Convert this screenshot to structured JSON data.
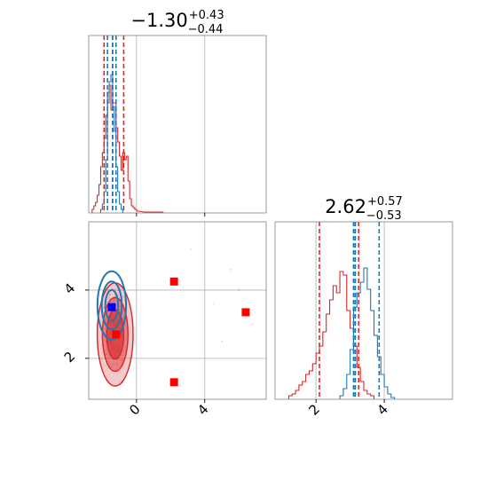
{
  "titles": [
    {
      "value": "−1.30",
      "upper": "+0.43",
      "lower": "−0.44"
    },
    {
      "value": "2.62",
      "upper": "+0.57",
      "lower": "−0.53"
    }
  ],
  "colors": {
    "red": "#d62728",
    "blue": "#1f77b4",
    "marker_red": "#ff0000",
    "marker_blue": "#0000ff"
  },
  "chart_data": {
    "type": "corner",
    "parameters": [
      "x",
      "y"
    ],
    "x_range": [
      -2.8,
      7.6
    ],
    "y_range": [
      0.8,
      6.0
    ],
    "x_ticks": [
      {
        "value": 0,
        "label": "0"
      },
      {
        "value": 4,
        "label": "4"
      }
    ],
    "y_ticks": [
      {
        "value": 2,
        "label": "2"
      },
      {
        "value": 4,
        "label": "4"
      }
    ],
    "grid": true,
    "series": [
      {
        "color": "red",
        "x_quantiles": [
          -1.9,
          -1.4,
          -0.75
        ],
        "y_quantiles": [
          2.1,
          3.15,
          3.25
        ],
        "x_center": -1.3,
        "y_center": 2.6,
        "x_hist": [
          {
            "x": -2.55,
            "h": 0.02
          },
          {
            "x": -2.45,
            "h": 0.04
          },
          {
            "x": -2.35,
            "h": 0.06
          },
          {
            "x": -2.25,
            "h": 0.1
          },
          {
            "x": -2.15,
            "h": 0.16
          },
          {
            "x": -2.05,
            "h": 0.26
          },
          {
            "x": -1.95,
            "h": 0.34
          },
          {
            "x": -1.85,
            "h": 0.42
          },
          {
            "x": -1.75,
            "h": 0.55
          },
          {
            "x": -1.65,
            "h": 0.68
          },
          {
            "x": -1.55,
            "h": 0.72
          },
          {
            "x": -1.45,
            "h": 0.58
          },
          {
            "x": -1.35,
            "h": 0.62
          },
          {
            "x": -1.25,
            "h": 0.62
          },
          {
            "x": -1.15,
            "h": 0.48
          },
          {
            "x": -1.05,
            "h": 0.4
          },
          {
            "x": -0.95,
            "h": 0.32
          },
          {
            "x": -0.85,
            "h": 0.24
          },
          {
            "x": -0.75,
            "h": 0.34
          },
          {
            "x": -0.65,
            "h": 0.3
          },
          {
            "x": -0.55,
            "h": 0.32
          },
          {
            "x": -0.45,
            "h": 0.18
          },
          {
            "x": -0.35,
            "h": 0.08
          },
          {
            "x": -0.25,
            "h": 0.04
          },
          {
            "x": -0.15,
            "h": 0.03
          },
          {
            "x": -0.05,
            "h": 0.02
          },
          {
            "x": 0.1,
            "h": 0.01
          },
          {
            "x": 0.5,
            "h": 0.005
          },
          {
            "x": 1.5,
            "h": 0.005
          }
        ],
        "y_hist": [
          {
            "x": 1.25,
            "h": 0.02
          },
          {
            "x": 1.35,
            "h": 0.03
          },
          {
            "x": 1.45,
            "h": 0.05
          },
          {
            "x": 1.55,
            "h": 0.08
          },
          {
            "x": 1.65,
            "h": 0.1
          },
          {
            "x": 1.75,
            "h": 0.14
          },
          {
            "x": 1.85,
            "h": 0.16
          },
          {
            "x": 1.95,
            "h": 0.2
          },
          {
            "x": 2.05,
            "h": 0.26
          },
          {
            "x": 2.15,
            "h": 0.3
          },
          {
            "x": 2.25,
            "h": 0.38
          },
          {
            "x": 2.35,
            "h": 0.48
          },
          {
            "x": 2.45,
            "h": 0.56
          },
          {
            "x": 2.55,
            "h": 0.64
          },
          {
            "x": 2.65,
            "h": 0.6
          },
          {
            "x": 2.75,
            "h": 0.72
          },
          {
            "x": 2.85,
            "h": 0.7
          },
          {
            "x": 2.95,
            "h": 0.5
          },
          {
            "x": 3.05,
            "h": 0.4
          },
          {
            "x": 3.15,
            "h": 0.3
          },
          {
            "x": 3.25,
            "h": 0.18
          },
          {
            "x": 3.35,
            "h": 0.1
          },
          {
            "x": 3.45,
            "h": 0.05
          },
          {
            "x": 3.55,
            "h": 0.03
          },
          {
            "x": 3.65,
            "h": 0.02
          }
        ]
      },
      {
        "color": "blue",
        "x_quantiles": [
          -1.7,
          -1.4,
          -1.2
        ],
        "y_quantiles": [
          3.1,
          3.15,
          3.85
        ],
        "x_center": -1.45,
        "y_center": 3.4,
        "x_hist": [
          {
            "x": -2.05,
            "h": 0.02
          },
          {
            "x": -1.95,
            "h": 0.05
          },
          {
            "x": -1.85,
            "h": 0.12
          },
          {
            "x": -1.75,
            "h": 0.3
          },
          {
            "x": -1.65,
            "h": 0.62
          },
          {
            "x": -1.55,
            "h": 0.74
          },
          {
            "x": -1.45,
            "h": 0.78
          },
          {
            "x": -1.35,
            "h": 0.6
          },
          {
            "x": -1.25,
            "h": 0.46
          },
          {
            "x": -1.15,
            "h": 0.26
          },
          {
            "x": -1.05,
            "h": 0.12
          },
          {
            "x": -0.95,
            "h": 0.05
          },
          {
            "x": -0.85,
            "h": 0.02
          }
        ],
        "y_hist": [
          {
            "x": 2.75,
            "h": 0.02
          },
          {
            "x": 2.85,
            "h": 0.06
          },
          {
            "x": 2.95,
            "h": 0.14
          },
          {
            "x": 3.05,
            "h": 0.28
          },
          {
            "x": 3.15,
            "h": 0.52
          },
          {
            "x": 3.25,
            "h": 0.6
          },
          {
            "x": 3.35,
            "h": 0.66
          },
          {
            "x": 3.45,
            "h": 0.74
          },
          {
            "x": 3.55,
            "h": 0.62
          },
          {
            "x": 3.65,
            "h": 0.5
          },
          {
            "x": 3.75,
            "h": 0.36
          },
          {
            "x": 3.85,
            "h": 0.24
          },
          {
            "x": 3.95,
            "h": 0.14
          },
          {
            "x": 4.05,
            "h": 0.07
          },
          {
            "x": 4.15,
            "h": 0.03
          },
          {
            "x": 4.25,
            "h": 0.01
          }
        ]
      }
    ],
    "markers": [
      {
        "x": -1.45,
        "y": 3.5,
        "color": "marker_blue"
      },
      {
        "x": -1.2,
        "y": 2.7,
        "color": "marker_red"
      },
      {
        "x": 2.2,
        "y": 4.25,
        "color": "marker_red"
      },
      {
        "x": 2.2,
        "y": 1.3,
        "color": "marker_red"
      },
      {
        "x": 6.4,
        "y": 3.35,
        "color": "marker_red"
      }
    ],
    "contours": {
      "red": {
        "cx": -1.25,
        "cy": 2.7,
        "sx": 0.5,
        "sy": 0.72
      },
      "blue": {
        "cx": -1.45,
        "cy": 3.55,
        "sx": 0.42,
        "sy": 0.5
      }
    }
  }
}
